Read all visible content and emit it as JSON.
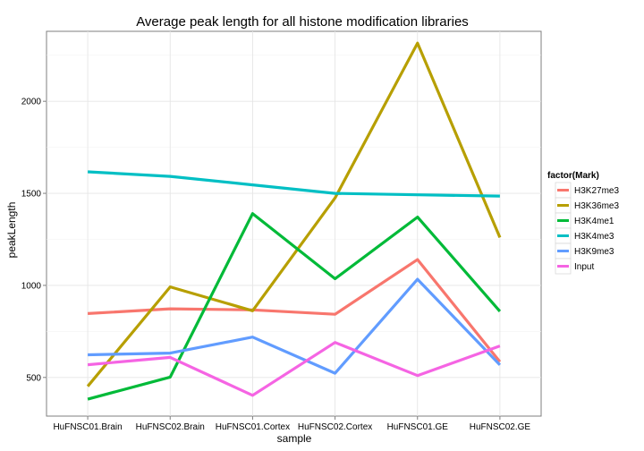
{
  "chart_data": {
    "type": "line",
    "title": "Average peak length for all histone modification libraries",
    "xlabel": "sample",
    "ylabel": "peakLength",
    "categories": [
      "HuFNSC01.Brain",
      "HuFNSC02.Brain",
      "HuFNSC01.Cortex",
      "HuFNSC02.Cortex",
      "HuFNSC01.GE",
      "HuFNSC02.GE"
    ],
    "ylim": [
      290,
      2380
    ],
    "yticks": [
      500,
      1000,
      1500,
      2000
    ],
    "grid": true,
    "legend": {
      "title": "factor(Mark)",
      "placement": "right"
    },
    "series": [
      {
        "name": "H3K27me3",
        "color": "#F8766D",
        "values": [
          847,
          873,
          867,
          843,
          1140,
          585
        ]
      },
      {
        "name": "H3K36me3",
        "color": "#B79F00",
        "values": [
          452,
          992,
          862,
          1475,
          2316,
          1260
        ]
      },
      {
        "name": "H3K4me1",
        "color": "#00BA38",
        "values": [
          382,
          502,
          1390,
          1036,
          1371,
          859
        ]
      },
      {
        "name": "H3K4me3",
        "color": "#00BFC4",
        "values": [
          1617,
          1592,
          1546,
          1500,
          1492,
          1485
        ]
      },
      {
        "name": "H3K9me3",
        "color": "#619CFF",
        "values": [
          623,
          632,
          719,
          523,
          1033,
          568
        ]
      },
      {
        "name": "Input",
        "color": "#F564E3",
        "values": [
          569,
          609,
          403,
          690,
          510,
          671
        ]
      }
    ]
  }
}
